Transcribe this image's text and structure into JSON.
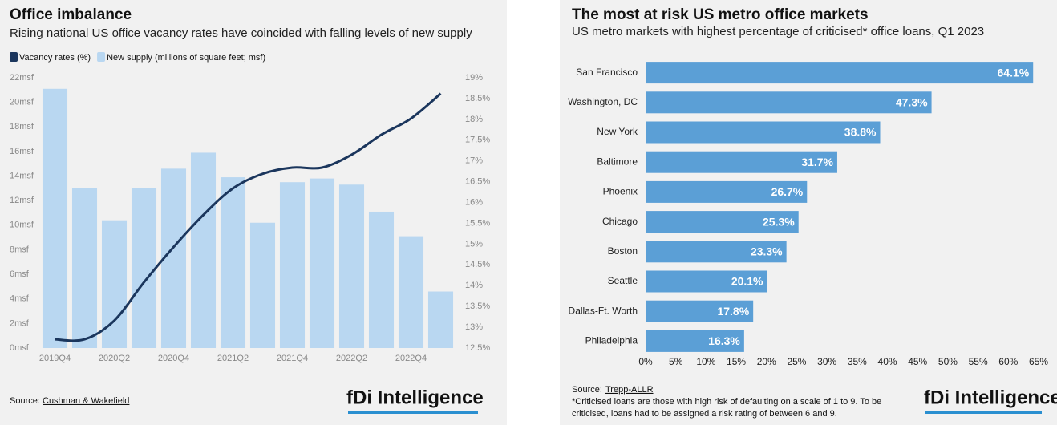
{
  "chart_data": [
    {
      "type": "bar_line",
      "title": "Office imbalance",
      "subtitle": "Rising national US office vacancy rates have coincided with falling levels of new supply",
      "categories": [
        "2019Q4",
        null,
        "2020Q2",
        null,
        "2020Q4",
        null,
        "2021Q2",
        null,
        "2021Q4",
        null,
        "2022Q2",
        null,
        "2022Q4",
        null
      ],
      "series": [
        {
          "name": "Vacancy rates (%)",
          "color": "#1b365d",
          "type": "line",
          "axis": "y2",
          "values": [
            12.71,
            12.71,
            13.16,
            14.08,
            14.93,
            15.7,
            16.34,
            16.69,
            16.84,
            16.84,
            17.15,
            17.63,
            18.02,
            18.62
          ]
        },
        {
          "name": "New supply (millions of square feet; msf)",
          "color": "#b9d7f1",
          "type": "bar",
          "values": [
            21.1,
            13.05,
            10.4,
            13.05,
            14.6,
            15.9,
            13.9,
            10.2,
            13.5,
            13.8,
            13.3,
            11.1,
            9.1,
            4.6
          ]
        }
      ],
      "ylim": [
        0,
        22
      ],
      "yticks": [
        {
          "value": 0,
          "label": "0msf"
        },
        {
          "value": 2,
          "label": "2msf"
        },
        {
          "value": 4,
          "label": "4msf"
        },
        {
          "value": 6,
          "label": "6msf"
        },
        {
          "value": 8,
          "label": "8msf"
        },
        {
          "value": 10,
          "label": "10msf"
        },
        {
          "value": 12,
          "label": "12msf"
        },
        {
          "value": 14,
          "label": "14msf"
        },
        {
          "value": 16,
          "label": "16msf"
        },
        {
          "value": 18,
          "label": "18msf"
        },
        {
          "value": 20,
          "label": "20msf"
        },
        {
          "value": 22,
          "label": "22msf"
        }
      ],
      "y2lim": [
        12.5,
        19
      ],
      "y2ticks": [
        {
          "value": 12.5,
          "label": "12.5%"
        },
        {
          "value": 13,
          "label": "13%"
        },
        {
          "value": 13.5,
          "label": "13.5%"
        },
        {
          "value": 14,
          "label": "14%"
        },
        {
          "value": 14.5,
          "label": "14.5%"
        },
        {
          "value": 15,
          "label": "15%"
        },
        {
          "value": 15.5,
          "label": "15.5%"
        },
        {
          "value": 16,
          "label": "16%"
        },
        {
          "value": 16.5,
          "label": "16.5%"
        },
        {
          "value": 17,
          "label": "17%"
        },
        {
          "value": 17.5,
          "label": "17.5%"
        },
        {
          "value": 18,
          "label": "18%"
        },
        {
          "value": 18.5,
          "label": "18.5%"
        },
        {
          "value": 19,
          "label": "19%"
        }
      ],
      "source_label": "Source:",
      "source": "Cushman & Wakefield",
      "brand": "fDi Intelligence"
    },
    {
      "type": "hbar",
      "title": "The most at risk US metro office markets",
      "subtitle": "US metro markets with highest percentage of criticised* office loans, Q1 2023",
      "categories": [
        "San Francisco",
        "Washington, DC",
        "New York",
        "Baltimore",
        "Phoenix",
        "Chicago",
        "Boston",
        "Seattle",
        "Dallas-Ft. Worth",
        "Philadelphia"
      ],
      "values": [
        64.1,
        47.3,
        38.8,
        31.7,
        26.7,
        25.3,
        23.3,
        20.1,
        17.8,
        16.3
      ],
      "value_labels": [
        "64.1%",
        "47.3%",
        "38.8%",
        "31.7%",
        "26.7%",
        "25.3%",
        "23.3%",
        "20.1%",
        "17.8%",
        "16.3%"
      ],
      "color": "#5b9fd6",
      "xlim": [
        0,
        65
      ],
      "xticks": [
        {
          "value": 0,
          "label": "0%"
        },
        {
          "value": 5,
          "label": "5%"
        },
        {
          "value": 10,
          "label": "10%"
        },
        {
          "value": 15,
          "label": "15%"
        },
        {
          "value": 20,
          "label": "20%"
        },
        {
          "value": 25,
          "label": "25%"
        },
        {
          "value": 30,
          "label": "30%"
        },
        {
          "value": 35,
          "label": "35%"
        },
        {
          "value": 40,
          "label": "40%"
        },
        {
          "value": 45,
          "label": "45%"
        },
        {
          "value": 50,
          "label": "50%"
        },
        {
          "value": 55,
          "label": "55%"
        },
        {
          "value": 60,
          "label": "60%"
        },
        {
          "value": 65,
          "label": "65%"
        }
      ],
      "source_label": "Source:",
      "source": "Trepp-ALLR",
      "notes": [
        "*Criticised loans are those with high risk of defaulting on a scale of 1 to 9. To be",
        "criticised, loans had to be assigned a risk rating of between 6 and 9."
      ],
      "brand": "fDi Intelligence"
    }
  ]
}
